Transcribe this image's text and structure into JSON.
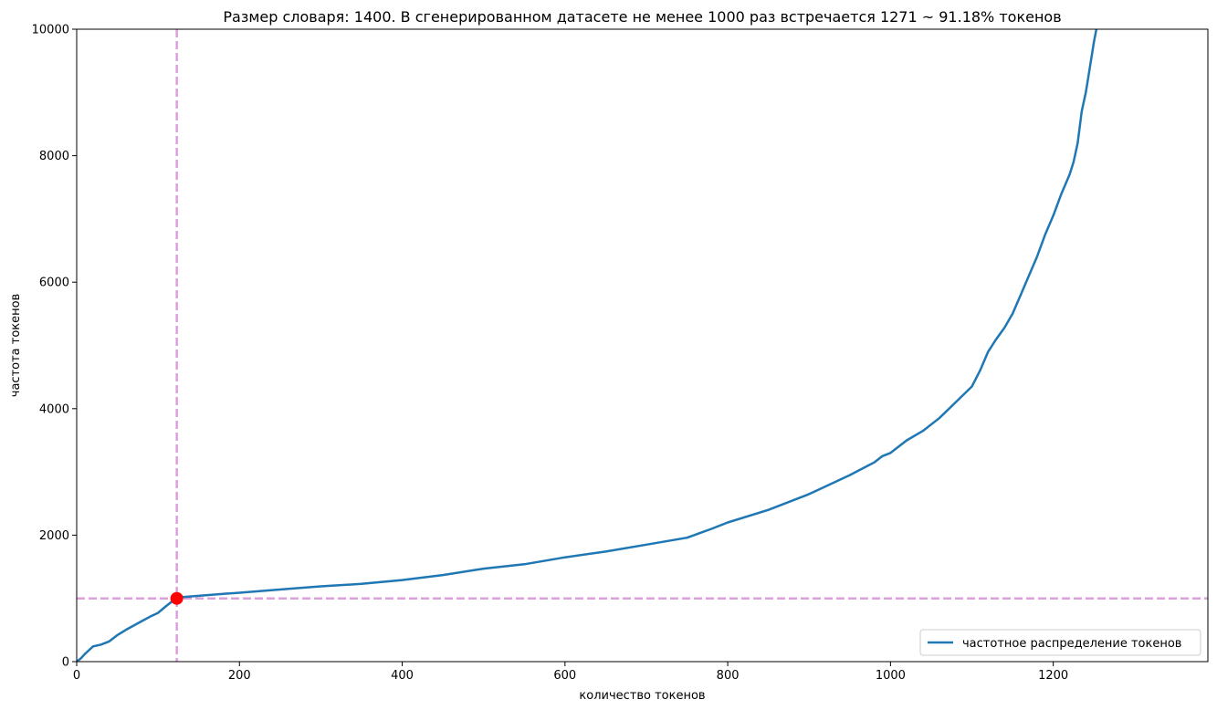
{
  "chart_data": {
    "type": "line",
    "title": "Размер словаря: 1400. В сгенерированном датасете не менее 1000 раз встречается 1271 ~ 91.18% токенов",
    "xlabel": "количество токенов",
    "ylabel": "частота токенов",
    "xlim": [
      0,
      1390
    ],
    "ylim": [
      0,
      10000
    ],
    "x_ticks": [
      0,
      200,
      400,
      600,
      800,
      1000,
      1200
    ],
    "y_ticks": [
      0,
      2000,
      4000,
      6000,
      8000,
      10000
    ],
    "grid": false,
    "legend_position": "lower-right",
    "colors": {
      "series": "#1f77b4",
      "threshold_lines": "#dda0dd",
      "marker": "#ff0000"
    },
    "series": [
      {
        "name": "частотное распределение токенов",
        "x": [
          0,
          5,
          10,
          15,
          20,
          30,
          40,
          50,
          60,
          70,
          80,
          90,
          100,
          110,
          118,
          122,
          130,
          150,
          180,
          200,
          230,
          260,
          300,
          350,
          400,
          450,
          500,
          550,
          600,
          650,
          700,
          750,
          780,
          800,
          850,
          900,
          950,
          980,
          990,
          1000,
          1020,
          1040,
          1060,
          1080,
          1100,
          1110,
          1120,
          1130,
          1140,
          1150,
          1160,
          1170,
          1180,
          1190,
          1200,
          1210,
          1220,
          1225,
          1230,
          1235,
          1240,
          1245,
          1250,
          1253,
          1255
        ],
        "y": [
          0,
          50,
          120,
          180,
          240,
          270,
          320,
          420,
          500,
          570,
          640,
          710,
          770,
          880,
          960,
          1000,
          1020,
          1040,
          1070,
          1090,
          1120,
          1150,
          1190,
          1230,
          1290,
          1370,
          1470,
          1540,
          1650,
          1740,
          1850,
          1960,
          2100,
          2200,
          2400,
          2650,
          2950,
          3150,
          3250,
          3300,
          3500,
          3650,
          3850,
          4100,
          4350,
          4600,
          4900,
          5100,
          5280,
          5500,
          5800,
          6100,
          6400,
          6750,
          7050,
          7400,
          7700,
          7900,
          8200,
          8700,
          9000,
          9400,
          9800,
          10000,
          10200
        ]
      }
    ],
    "reference_lines": {
      "horizontal_y": 1000,
      "vertical_x": 123
    },
    "marker_point": {
      "x": 123,
      "y": 1000
    }
  }
}
